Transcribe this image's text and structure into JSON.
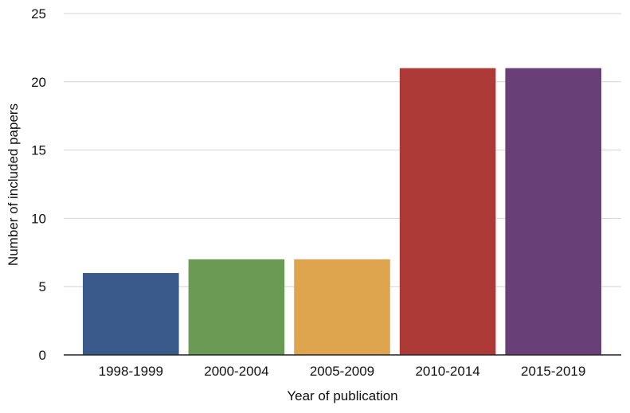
{
  "chart_data": {
    "type": "bar",
    "title": "",
    "xlabel": "Year of publication",
    "ylabel": "Number of included papers",
    "categories": [
      "1998-1999",
      "2000-2004",
      "2005-2009",
      "2010-2014",
      "2015-2019"
    ],
    "values": [
      6,
      7,
      7,
      21,
      21
    ],
    "colors": [
      "#3a5a8c",
      "#6a9a54",
      "#dea44e",
      "#ae3a37",
      "#683f77"
    ],
    "ylim": [
      0,
      25
    ],
    "yticks": [
      0,
      5,
      10,
      15,
      20,
      25
    ],
    "grid": true,
    "legend": "none"
  }
}
